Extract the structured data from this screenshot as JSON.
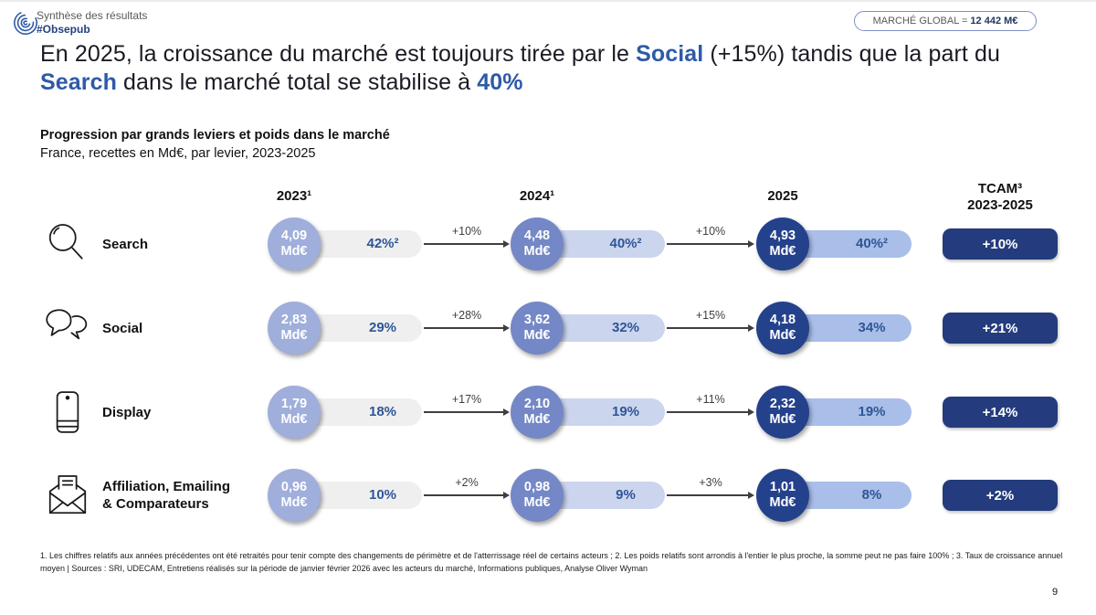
{
  "header": {
    "brand_line1": "Synthèse des résultats",
    "brand_line2": "#Obsepub",
    "badge_label": "MARCHÉ GLOBAL =",
    "badge_value": "12 442 M€"
  },
  "title": {
    "segments": [
      {
        "t": "En 2025, la croissance du marché est toujours tirée par le ",
        "b": false
      },
      {
        "t": "Social",
        "b": true
      },
      {
        "t": " (+15%) tandis que la part du ",
        "b": false
      },
      {
        "t": "Search",
        "b": true
      },
      {
        "t": " dans le marché total se stabilise à ",
        "b": false
      },
      {
        "t": "40%",
        "b": true
      }
    ]
  },
  "section": {
    "heading": "Progression par grands leviers et poids dans le marché",
    "subheading": "France, recettes en Md€, par levier, 2023-2025"
  },
  "columns": {
    "y2023": "2023¹",
    "y2024": "2024¹",
    "y2025": "2025",
    "tcam_line1": "TCAM³",
    "tcam_line2": "2023-2025"
  },
  "rows": [
    {
      "id": "search",
      "icon": "magnifier-icon",
      "label": "Search",
      "periods": [
        {
          "value": "4,09",
          "unit": "Md€",
          "share": "42%²"
        },
        {
          "value": "4,48",
          "unit": "Md€",
          "share": "40%²"
        },
        {
          "value": "4,93",
          "unit": "Md€",
          "share": "40%²"
        }
      ],
      "growth": [
        "+10%",
        "+10%"
      ],
      "tcam": "+10%"
    },
    {
      "id": "social",
      "icon": "speech-bubbles-icon",
      "label": "Social",
      "periods": [
        {
          "value": "2,83",
          "unit": "Md€",
          "share": "29%"
        },
        {
          "value": "3,62",
          "unit": "Md€",
          "share": "32%"
        },
        {
          "value": "4,18",
          "unit": "Md€",
          "share": "34%"
        }
      ],
      "growth": [
        "+28%",
        "+15%"
      ],
      "tcam": "+21%"
    },
    {
      "id": "display",
      "icon": "smartphone-icon",
      "label": "Display",
      "periods": [
        {
          "value": "1,79",
          "unit": "Md€",
          "share": "18%"
        },
        {
          "value": "2,10",
          "unit": "Md€",
          "share": "19%"
        },
        {
          "value": "2,32",
          "unit": "Md€",
          "share": "19%"
        }
      ],
      "growth": [
        "+17%",
        "+11%"
      ],
      "tcam": "+14%"
    },
    {
      "id": "affiliation",
      "icon": "envelope-icon",
      "label": "Affiliation, Emailing & Comparateurs",
      "periods": [
        {
          "value": "0,96",
          "unit": "Md€",
          "share": "10%"
        },
        {
          "value": "0,98",
          "unit": "Md€",
          "share": "9%"
        },
        {
          "value": "1,01",
          "unit": "Md€",
          "share": "8%"
        }
      ],
      "growth": [
        "+2%",
        "+3%"
      ],
      "tcam": "+2%"
    }
  ],
  "footnotes": {
    "text": "1. Les chiffres relatifs aux années précédentes ont été retraités pour tenir compte des changements de périmètre et de l'atterrissage réel de certains acteurs ; 2. Les poids relatifs sont arrondis à l'entier le plus proche, la somme peut ne pas faire 100% ; 3. Taux de croissance annuel moyen | Sources : SRI, UDECAM, Entretiens réalisés sur la période de janvier février 2026 avec les acteurs du marché, Informations publiques, Analyse Oliver Wyman"
  },
  "page_number": "9",
  "colors": {
    "accent_blue": "#2E5AA7",
    "navy_box": "#243C7D",
    "circle_2023": "#9FAEDB",
    "circle_2024": "#7487C6",
    "circle_2025": "#24418C",
    "pill_2023": "#EFEFEF",
    "pill_2024": "#CBD5EE",
    "pill_2025": "#A9BEE8",
    "pill_text": "#2F5597"
  },
  "chart_data": {
    "type": "table",
    "title": "Progression par grands leviers et poids dans le marché",
    "subtitle": "France, recettes en Md€, par levier, 2023-2025",
    "global_market_meur": 12442,
    "columns": [
      "2023",
      "2024",
      "2025",
      "TCAM 2023-2025"
    ],
    "series": [
      {
        "name": "Search",
        "revenue_mde": [
          4.09,
          4.48,
          4.93
        ],
        "market_share_pct": [
          42,
          40,
          40
        ],
        "yoy_growth_pct": [
          "+10%",
          "+10%"
        ],
        "tcam": "+10%"
      },
      {
        "name": "Social",
        "revenue_mde": [
          2.83,
          3.62,
          4.18
        ],
        "market_share_pct": [
          29,
          32,
          34
        ],
        "yoy_growth_pct": [
          "+28%",
          "+15%"
        ],
        "tcam": "+21%"
      },
      {
        "name": "Display",
        "revenue_mde": [
          1.79,
          2.1,
          2.32
        ],
        "market_share_pct": [
          18,
          19,
          19
        ],
        "yoy_growth_pct": [
          "+17%",
          "+11%"
        ],
        "tcam": "+14%"
      },
      {
        "name": "Affiliation, Emailing & Comparateurs",
        "revenue_mde": [
          0.96,
          0.98,
          1.01
        ],
        "market_share_pct": [
          10,
          9,
          8
        ],
        "yoy_growth_pct": [
          "+2%",
          "+3%"
        ],
        "tcam": "+2%"
      }
    ]
  }
}
